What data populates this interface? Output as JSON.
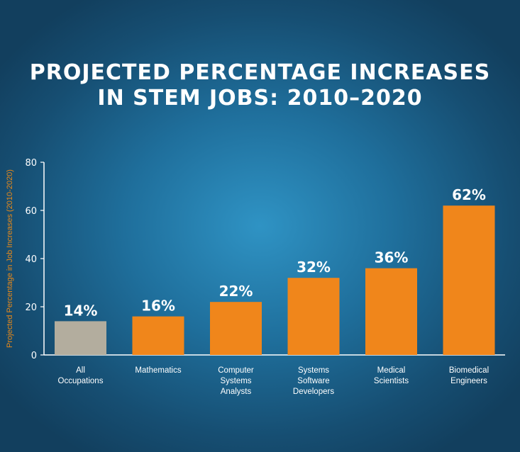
{
  "chart_data": {
    "type": "bar",
    "title_lines": [
      "PROJECTED PERCENTAGE INCREASES",
      "IN STEM JOBS: 2010–2020"
    ],
    "ylabel": "Projected Percentage in Job Increases (2010-2020)",
    "xlabel": "",
    "ylim": [
      0,
      80
    ],
    "yticks": [
      0,
      20,
      40,
      60,
      80
    ],
    "grid": false,
    "categories": [
      [
        "All",
        "Occupations"
      ],
      [
        "Mathematics"
      ],
      [
        "Computer",
        "Systems",
        "Analysts"
      ],
      [
        "Systems",
        "Software",
        "Developers"
      ],
      [
        "Medical",
        "Scientists"
      ],
      [
        "Biomedical",
        "Engineers"
      ]
    ],
    "values": [
      14,
      16,
      22,
      32,
      36,
      62
    ],
    "data_labels": [
      "14%",
      "16%",
      "22%",
      "32%",
      "36%",
      "62%"
    ],
    "colors": [
      "#b3ad9e",
      "#f0861b",
      "#f0861b",
      "#f0861b",
      "#f0861b",
      "#f0861b"
    ],
    "label_color": "#ffffff",
    "ylabel_color": "#e8891a"
  }
}
